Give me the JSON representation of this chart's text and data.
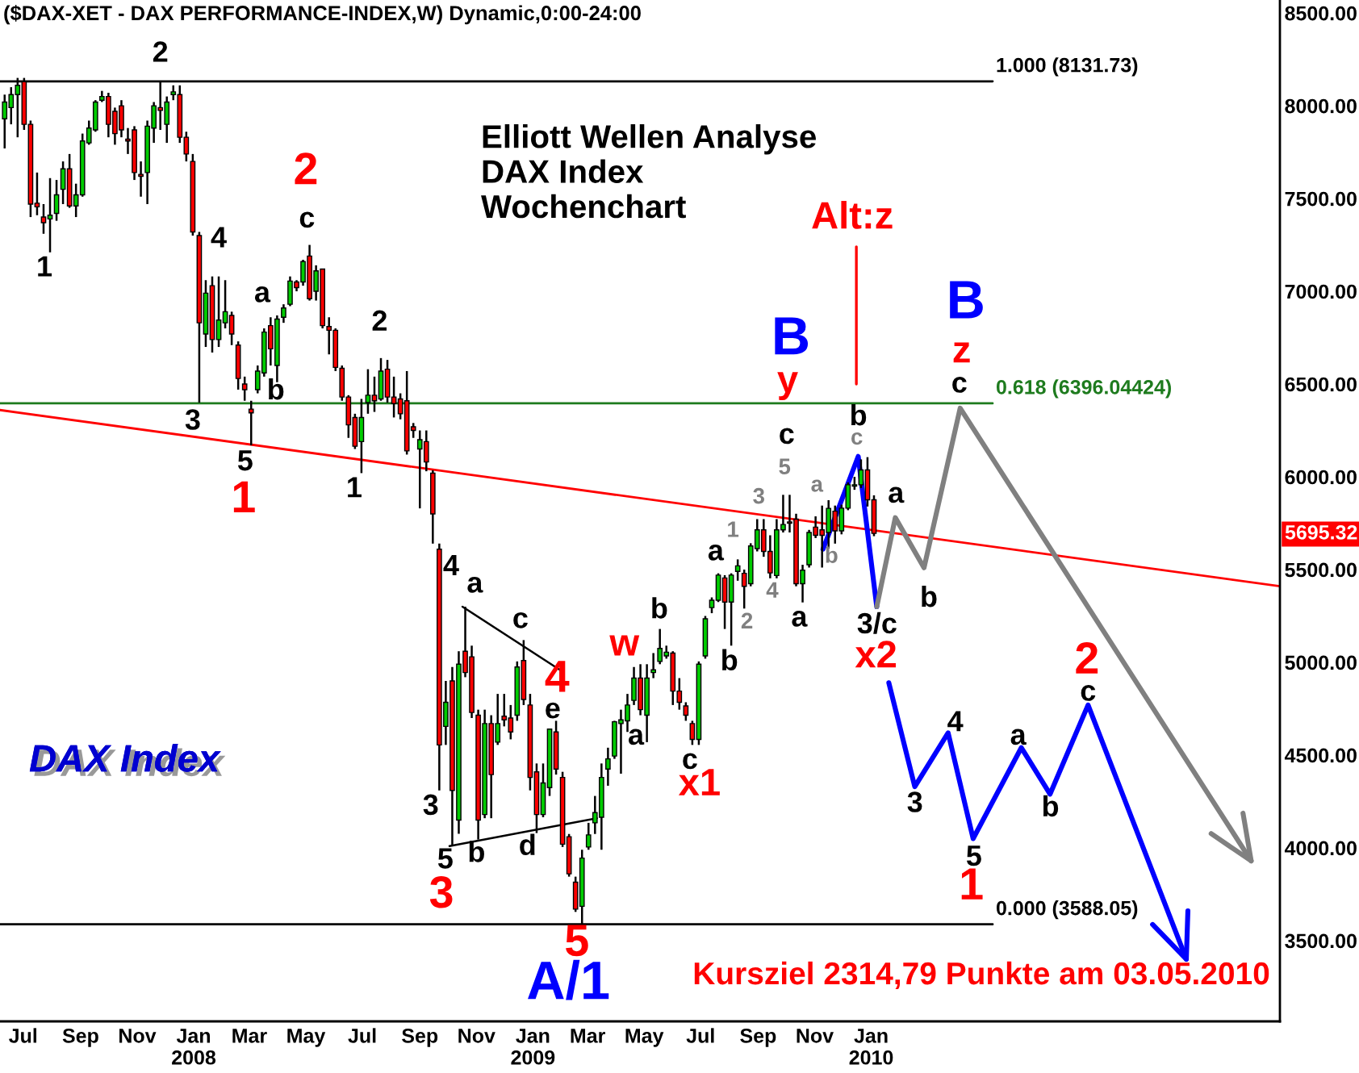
{
  "chart_data": {
    "type": "candlestick",
    "title": "($DAX-XET - DAX PERFORMANCE-INDEX,W) Dynamic,0:00-24:00",
    "x": [
      "2007-06-25",
      "2007-07-02",
      "2007-07-09",
      "2007-07-16",
      "2007-07-23",
      "2007-07-30",
      "2007-08-06",
      "2007-08-13",
      "2007-08-20",
      "2007-08-27",
      "2007-09-03",
      "2007-09-10",
      "2007-09-17",
      "2007-09-24",
      "2007-10-01",
      "2007-10-08",
      "2007-10-15",
      "2007-10-22",
      "2007-10-29",
      "2007-11-05",
      "2007-11-12",
      "2007-11-19",
      "2007-11-26",
      "2007-12-03",
      "2007-12-10",
      "2007-12-17",
      "2007-12-24",
      "2007-12-31",
      "2008-01-07",
      "2008-01-14",
      "2008-01-21",
      "2008-01-28",
      "2008-02-04",
      "2008-02-11",
      "2008-02-18",
      "2008-02-25",
      "2008-03-03",
      "2008-03-10",
      "2008-03-17",
      "2008-03-24",
      "2008-03-31",
      "2008-04-07",
      "2008-04-14",
      "2008-04-21",
      "2008-04-28",
      "2008-05-05",
      "2008-05-12",
      "2008-05-19",
      "2008-05-26",
      "2008-06-02",
      "2008-06-09",
      "2008-06-16",
      "2008-06-23",
      "2008-06-30",
      "2008-07-07",
      "2008-07-14",
      "2008-07-21",
      "2008-07-28",
      "2008-08-04",
      "2008-08-11",
      "2008-08-18",
      "2008-08-25",
      "2008-09-01",
      "2008-09-08",
      "2008-09-15",
      "2008-09-22",
      "2008-09-29",
      "2008-10-06",
      "2008-10-13",
      "2008-10-20",
      "2008-10-27",
      "2008-11-03",
      "2008-11-10",
      "2008-11-17",
      "2008-11-24",
      "2008-12-01",
      "2008-12-08",
      "2008-12-15",
      "2008-12-22",
      "2008-12-29",
      "2009-01-05",
      "2009-01-12",
      "2009-01-19",
      "2009-01-26",
      "2009-02-02",
      "2009-02-09",
      "2009-02-16",
      "2009-02-23",
      "2009-03-02",
      "2009-03-09",
      "2009-03-16",
      "2009-03-23",
      "2009-03-30",
      "2009-04-06",
      "2009-04-13",
      "2009-04-20",
      "2009-04-27",
      "2009-05-04",
      "2009-05-11",
      "2009-05-18",
      "2009-05-25",
      "2009-06-01",
      "2009-06-08",
      "2009-06-15",
      "2009-06-22",
      "2009-06-29",
      "2009-07-06",
      "2009-07-13",
      "2009-07-20",
      "2009-07-27",
      "2009-08-03",
      "2009-08-10",
      "2009-08-17",
      "2009-08-24",
      "2009-08-31",
      "2009-09-07",
      "2009-09-14",
      "2009-09-21",
      "2009-09-28",
      "2009-10-05",
      "2009-10-12",
      "2009-10-19",
      "2009-10-26",
      "2009-11-02",
      "2009-11-09",
      "2009-11-16",
      "2009-11-23",
      "2009-11-30",
      "2009-12-07",
      "2009-12-14",
      "2009-12-21",
      "2009-12-28",
      "2010-01-04",
      "2010-01-11",
      "2010-01-18"
    ],
    "ohlc": [
      [
        7930,
        8060,
        7770,
        8020
      ],
      [
        7990,
        8100,
        7900,
        8060
      ],
      [
        8060,
        8150,
        7830,
        8110
      ],
      [
        8130,
        8150,
        7870,
        7900
      ],
      [
        7900,
        7920,
        7400,
        7470
      ],
      [
        7475,
        7640,
        7410,
        7455
      ],
      [
        7400,
        7470,
        7310,
        7370
      ],
      [
        7390,
        7610,
        7210,
        7410
      ],
      [
        7420,
        7600,
        7380,
        7520
      ],
      [
        7550,
        7700,
        7470,
        7660
      ],
      [
        7660,
        7740,
        7450,
        7460
      ],
      [
        7460,
        7580,
        7400,
        7520
      ],
      [
        7520,
        7850,
        7510,
        7810
      ],
      [
        7800,
        7920,
        7790,
        7880
      ],
      [
        7870,
        8030,
        7860,
        8020
      ],
      [
        8030,
        8080,
        8020,
        8050
      ],
      [
        8050,
        8070,
        7830,
        7900
      ],
      [
        7970,
        7990,
        7790,
        7850
      ],
      [
        8000,
        8030,
        7830,
        7870
      ],
      [
        7820,
        7880,
        7740,
        7810
      ],
      [
        7870,
        7890,
        7600,
        7640
      ],
      [
        7630,
        7700,
        7510,
        7620
      ],
      [
        7640,
        7920,
        7470,
        7890
      ],
      [
        7880,
        8020,
        7800,
        8000
      ],
      [
        7990,
        8130,
        7870,
        7975
      ],
      [
        7900,
        8050,
        7800,
        8020
      ],
      [
        8060,
        8110,
        8030,
        8075
      ],
      [
        8060,
        8110,
        7800,
        7830
      ],
      [
        7830,
        7860,
        7700,
        7740
      ],
      [
        7700,
        7740,
        7300,
        7320
      ],
      [
        7300,
        7320,
        6400,
        6830
      ],
      [
        6770,
        7060,
        6700,
        6990
      ],
      [
        7030,
        7080,
        6670,
        6740
      ],
      [
        6740,
        7080,
        6700,
        6845
      ],
      [
        6830,
        7060,
        6800,
        6890
      ],
      [
        6870,
        6890,
        6710,
        6770
      ],
      [
        6710,
        6730,
        6470,
        6530
      ],
      [
        6500,
        6540,
        6410,
        6470
      ],
      [
        6365,
        6410,
        6170,
        6345
      ],
      [
        6470,
        6600,
        6450,
        6570
      ],
      [
        6560,
        6800,
        6540,
        6780
      ],
      [
        6815,
        6860,
        6600,
        6690
      ],
      [
        6600,
        6870,
        6510,
        6850
      ],
      [
        6860,
        6930,
        6830,
        6910
      ],
      [
        6930,
        7080,
        6920,
        7055
      ],
      [
        7050,
        7060,
        7000,
        7020
      ],
      [
        7050,
        7170,
        7030,
        7160
      ],
      [
        7190,
        7250,
        6950,
        6960
      ],
      [
        7000,
        7140,
        6950,
        7110
      ],
      [
        7120,
        7120,
        6800,
        6815
      ],
      [
        6810,
        6860,
        6660,
        6790
      ],
      [
        6790,
        6800,
        6570,
        6590
      ],
      [
        6585,
        6600,
        6410,
        6430
      ],
      [
        6430,
        6440,
        6210,
        6280
      ],
      [
        6320,
        6340,
        6150,
        6165
      ],
      [
        6190,
        6420,
        6020,
        6320
      ],
      [
        6400,
        6580,
        6340,
        6440
      ],
      [
        6440,
        6540,
        6350,
        6410
      ],
      [
        6420,
        6640,
        6410,
        6570
      ],
      [
        6580,
        6630,
        6400,
        6430
      ],
      [
        6430,
        6540,
        6320,
        6395
      ],
      [
        6420,
        6450,
        6310,
        6340
      ],
      [
        6410,
        6570,
        6120,
        6140
      ],
      [
        6270,
        6290,
        6210,
        6250
      ],
      [
        6150,
        6250,
        5830,
        6200
      ],
      [
        6190,
        6250,
        6030,
        6080
      ],
      [
        6020,
        6035,
        5640,
        5800
      ],
      [
        5610,
        5640,
        4310,
        4555
      ],
      [
        4655,
        4900,
        4555,
        4785
      ],
      [
        4900,
        4975,
        4010,
        4310
      ],
      [
        4150,
        5060,
        4076,
        4990
      ],
      [
        5060,
        5300,
        4920,
        4945
      ],
      [
        5030,
        5090,
        4700,
        4730
      ],
      [
        4715,
        4745,
        4045,
        4150
      ],
      [
        4180,
        4745,
        4160,
        4670
      ],
      [
        4670,
        4715,
        4160,
        4395
      ],
      [
        4570,
        4830,
        4555,
        4670
      ],
      [
        4710,
        4830,
        4655,
        4690
      ],
      [
        4700,
        4770,
        4585,
        4625
      ],
      [
        4715,
        5005,
        4685,
        4975
      ],
      [
        5010,
        5120,
        4770,
        4800
      ],
      [
        4770,
        4830,
        4310,
        4380
      ],
      [
        4410,
        4455,
        4080,
        4180
      ],
      [
        4180,
        4455,
        4165,
        4350
      ],
      [
        4325,
        4640,
        4280,
        4640
      ],
      [
        4625,
        4685,
        4395,
        4425
      ],
      [
        4380,
        4410,
        4005,
        4020
      ],
      [
        4060,
        4075,
        3845,
        3860
      ],
      [
        3815,
        3845,
        3655,
        3670
      ],
      [
        3685,
        3990,
        3588,
        3945
      ],
      [
        4005,
        4135,
        3990,
        4070
      ],
      [
        4135,
        4280,
        4075,
        4190
      ],
      [
        4165,
        4455,
        3990,
        4380
      ],
      [
        4425,
        4540,
        4335,
        4480
      ],
      [
        4495,
        4685,
        4480,
        4680
      ],
      [
        4670,
        4745,
        4400,
        4690
      ],
      [
        4685,
        4830,
        4625,
        4770
      ],
      [
        4795,
        4975,
        4770,
        4915
      ],
      [
        4915,
        4990,
        4715,
        4745
      ],
      [
        4715,
        4990,
        4570,
        4915
      ],
      [
        4945,
        5050,
        4915,
        4960
      ],
      [
        5005,
        5180,
        4990,
        5075
      ],
      [
        5035,
        5090,
        5020,
        5055
      ],
      [
        5050,
        5060,
        4770,
        4845
      ],
      [
        4845,
        4915,
        4745,
        4785
      ],
      [
        4765,
        4785,
        4685,
        4715
      ],
      [
        4670,
        4685,
        4555,
        4585
      ],
      [
        4585,
        5005,
        4555,
        4990
      ],
      [
        5035,
        5250,
        5020,
        5235
      ],
      [
        5295,
        5350,
        5265,
        5335
      ],
      [
        5335,
        5480,
        5325,
        5470
      ],
      [
        5455,
        5470,
        5180,
        5325
      ],
      [
        5325,
        5480,
        5090,
        5470
      ],
      [
        5490,
        5555,
        5440,
        5520
      ],
      [
        5480,
        5500,
        5290,
        5410
      ],
      [
        5424,
        5642,
        5410,
        5627
      ],
      [
        5613,
        5772,
        5598,
        5714
      ],
      [
        5714,
        5772,
        5569,
        5598
      ],
      [
        5598,
        5685,
        5453,
        5482
      ],
      [
        5468,
        5772,
        5453,
        5714
      ],
      [
        5714,
        5903,
        5700,
        5743
      ],
      [
        5757,
        5903,
        5700,
        5750
      ],
      [
        5772,
        5801,
        5410,
        5424
      ],
      [
        5424,
        5526,
        5323,
        5497
      ],
      [
        5526,
        5714,
        5511,
        5700
      ],
      [
        5729,
        5787,
        5670,
        5685
      ],
      [
        5714,
        5845,
        5511,
        5685
      ],
      [
        5700,
        5874,
        5613,
        5830
      ],
      [
        5815,
        5845,
        5640,
        5709
      ],
      [
        5709,
        5850,
        5690,
        5831
      ],
      [
        5831,
        5970,
        5820,
        5957
      ],
      [
        5950,
        6000,
        5930,
        5957
      ],
      [
        5957,
        6094,
        5940,
        6037
      ],
      [
        6037,
        6106,
        5840,
        5876
      ],
      [
        5876,
        5900,
        5680,
        5695
      ]
    ],
    "colors": [
      "#00cc00",
      "#00cc00",
      "#00cc00",
      "#ff0000",
      "#ff0000",
      "#ff0000",
      "#ff0000",
      "#00cc00",
      "#00cc00",
      "#00cc00",
      "#ff0000",
      "#00cc00",
      "#00cc00",
      "#00cc00",
      "#00cc00",
      "#00cc00",
      "#ff0000",
      "#ff0000",
      "#ff0000",
      "#ff0000",
      "#ff0000",
      "#ff0000",
      "#00cc00",
      "#00cc00",
      "#ff0000",
      "#00cc00",
      "#00cc00",
      "#ff0000",
      "#ff0000",
      "#ff0000",
      "#ff0000",
      "#00cc00",
      "#ff0000",
      "#00cc00",
      "#00cc00",
      "#ff0000",
      "#ff0000",
      "#ff0000",
      "#ff0000",
      "#00cc00",
      "#00cc00",
      "#ff0000",
      "#00cc00",
      "#00cc00",
      "#00cc00",
      "#ff0000",
      "#00cc00",
      "#ff0000",
      "#00cc00",
      "#ff0000",
      "#ff0000",
      "#ff0000",
      "#ff0000",
      "#ff0000",
      "#ff0000",
      "#00cc00",
      "#00cc00",
      "#ff0000",
      "#00cc00",
      "#ff0000",
      "#ff0000",
      "#ff0000",
      "#ff0000",
      "#ff0000",
      "#00cc00",
      "#ff0000",
      "#ff0000",
      "#ff0000",
      "#00cc00",
      "#ff0000",
      "#00cc00",
      "#ff0000",
      "#ff0000",
      "#ff0000",
      "#00cc00",
      "#ff0000",
      "#00cc00",
      "#ff0000",
      "#ff0000",
      "#00cc00",
      "#ff0000",
      "#ff0000",
      "#ff0000",
      "#00cc00",
      "#00cc00",
      "#ff0000",
      "#ff0000",
      "#ff0000",
      "#ff0000",
      "#00cc00",
      "#00cc00",
      "#00cc00",
      "#00cc00",
      "#00cc00",
      "#00cc00",
      "#00cc00",
      "#00cc00",
      "#00cc00",
      "#ff0000",
      "#00cc00",
      "#00cc00",
      "#00cc00",
      "#00cc00",
      "#ff0000",
      "#ff0000",
      "#ff0000",
      "#ff0000",
      "#00cc00",
      "#00cc00",
      "#00cc00",
      "#00cc00",
      "#ff0000",
      "#00cc00",
      "#00cc00",
      "#ff0000",
      "#00cc00",
      "#00cc00",
      "#ff0000",
      "#ff0000",
      "#00cc00",
      "#00cc00",
      "#ff0000",
      "#ff0000",
      "#00cc00",
      "#00cc00",
      "#ff0000",
      "#ff0000",
      "#00cc00",
      "#ff0000",
      "#00cc00",
      "#00cc00",
      "#00cc00",
      "#00cc00",
      "#ff0000",
      "#ff0000"
    ],
    "series": [
      {
        "type": "line",
        "color": "#ff0000",
        "x": [
          "2007-06-20",
          "2011-04-01"
        ],
        "values": [
          6360,
          5410
        ]
      },
      {
        "type": "line",
        "color": "#000000",
        "x": [
          "2008-10-31",
          "2009-02-13"
        ],
        "values": [
          5300,
          4960
        ]
      },
      {
        "type": "line",
        "color": "#000000",
        "x": [
          "2008-10-17",
          "2009-03-25"
        ],
        "values": [
          4010,
          4160
        ]
      },
      {
        "type": "line",
        "color": "#ff0000",
        "x": [
          "2009-12-30",
          "2009-12-30"
        ],
        "values": [
          7240,
          6500
        ]
      },
      {
        "type": "line",
        "color": "#0000ff",
        "x": [
          "2009-11-24",
          "2010-01-01",
          "2010-01-21"
        ],
        "values": [
          5610,
          6110,
          5300
        ]
      },
      {
        "type": "line",
        "color": "#0000ff",
        "x": [
          "2010-02-03",
          "2010-03-03",
          "2010-04-08",
          "2010-05-05",
          "2010-06-26",
          "2010-07-27",
          "2010-09-06",
          "2010-12-21"
        ],
        "values": [
          4890,
          4330,
          4620,
          4050,
          4540,
          4290,
          4770,
          3400
        ]
      },
      {
        "type": "line",
        "color": "#808080",
        "x": [
          "2010-01-21",
          "2010-02-10",
          "2010-03-13",
          "2010-04-21",
          "2011-03-01"
        ],
        "values": [
          5300,
          5780,
          5510,
          6370,
          3930
        ]
      }
    ],
    "ref_lines": [
      {
        "axis": "y",
        "value": 8131.73,
        "label": "1.000 (8131.73)",
        "color": "#000000"
      },
      {
        "axis": "y",
        "value": 6396.04424,
        "label": "0.618 (6396.04424)",
        "color": "#1e7b1e"
      },
      {
        "axis": "y",
        "value": 3588.05,
        "label": "0.000 (3588.05)",
        "color": "#000000"
      }
    ],
    "annotations": [
      "Elliott Wellen Analyse\nDAX Index\nWochenchart",
      "DAX Index",
      "5695.32",
      "B",
      "y",
      {
        "text": "Kursziel 2314,79 Punkte am 03.05.2010",
        "x": "2010-12-21",
        "y": 3400
      },
      {
        "text": "2",
        "x": "2007-12-10",
        "y": 8130
      },
      {
        "text": "1",
        "x": "2007-08-13",
        "y": 7210
      },
      {
        "text": "4",
        "x": "2008-02-11",
        "y": 7080
      },
      {
        "text": "a",
        "x": "2008-03-31",
        "y": 6800
      },
      {
        "text": "b",
        "x": "2008-04-14",
        "y": 6510
      },
      {
        "text": "3",
        "x": "2008-01-21",
        "y": 6400
      },
      {
        "text": "5",
        "x": "2008-03-17",
        "y": 6170
      },
      {
        "text": "c",
        "x": "2008-05-19",
        "y": 7250
      },
      {
        "text": "2",
        "x": "2008-08-04",
        "y": 6640
      },
      {
        "text": "1",
        "x": "2008-07-14",
        "y": 6020
      },
      {
        "text": "4",
        "x": "2008-10-06",
        "y": 5640
      },
      {
        "text": "a",
        "x": "2008-11-03",
        "y": 5300
      },
      {
        "text": "c",
        "x": "2009-01-05",
        "y": 5120
      },
      {
        "text": "e",
        "x": "2009-02-02",
        "y": 4640
      },
      {
        "text": "3",
        "x": "2008-10-06",
        "y": 4310
      },
      {
        "text": "5",
        "x": "2008-10-20",
        "y": 4010
      },
      {
        "text": "b",
        "x": "2008-11-17",
        "y": 4045
      },
      {
        "text": "d",
        "x": "2009-01-19",
        "y": 4080
      },
      {
        "text": "a",
        "x": "2009-05-11",
        "y": 4715
      },
      {
        "text": "b",
        "x": "2009-06-01",
        "y": 5180
      },
      {
        "text": "c",
        "x": "2009-07-06",
        "y": 4555
      },
      {
        "text": "a",
        "x": "2009-08-03",
        "y": 5480
      },
      {
        "text": "b",
        "x": "2009-08-17",
        "y": 5090
      },
      {
        "text": "c",
        "x": "2009-10-12",
        "y": 5903
      },
      {
        "text": "a",
        "x": "2009-11-02",
        "y": 5323
      },
      {
        "text": "b",
        "x": "2010-01-01",
        "y": 6110
      },
      {
        "text": "a",
        "x": "2010-02-10",
        "y": 5780
      },
      {
        "text": "b",
        "x": "2010-03-13",
        "y": 5510
      },
      {
        "text": "3/c",
        "x": "2010-01-21",
        "y": 5300
      },
      {
        "text": "c",
        "x": "2010-04-21",
        "y": 6370
      },
      {
        "text": "3",
        "x": "2010-03-03",
        "y": 4330
      },
      {
        "text": "4",
        "x": "2010-04-08",
        "y": 4620
      },
      {
        "text": "a",
        "x": "2010-06-26",
        "y": 4540
      },
      {
        "text": "5",
        "x": "2010-05-05",
        "y": 4050
      },
      {
        "text": "b",
        "x": "2010-07-27",
        "y": 4290
      },
      {
        "text": "c",
        "x": "2010-09-06",
        "y": 4770
      },
      {
        "text": "2",
        "x": "2008-05-19",
        "y": 7250
      },
      {
        "text": "1",
        "x": "2008-03-17",
        "y": 6170
      },
      {
        "text": "4",
        "x": "2009-02-13",
        "y": 4960
      },
      {
        "text": "3",
        "x": "2008-10-20",
        "y": 4010
      },
      {
        "text": "5",
        "x": "2009-03-09",
        "y": 3588
      },
      {
        "text": "2",
        "x": "2010-09-06",
        "y": 4770
      },
      {
        "text": "1",
        "x": "2010-05-05",
        "y": 4050
      },
      {
        "text": "w",
        "x": "2009-05-04",
        "y": 4975
      },
      {
        "text": "x1",
        "x": "2009-07-06",
        "y": 4555
      },
      {
        "text": "x2",
        "x": "2010-01-21",
        "y": 5300
      },
      {
        "text": "z",
        "x": "2010-04-21",
        "y": 6370
      },
      {
        "text": "Alt:z",
        "x": "2009-12-30",
        "y": 7240
      },
      {
        "text": "B",
        "x": "2010-04-21",
        "y": 6370
      },
      {
        "text": "A/1",
        "x": "2009-03-09",
        "y": 3588
      },
      {
        "text": "1",
        "x": "2009-08-24",
        "y": 5555
      },
      {
        "text": "2",
        "x": "2009-08-31",
        "y": 5290
      },
      {
        "text": "3",
        "x": "2009-09-14",
        "y": 5772
      },
      {
        "text": "4",
        "x": "2009-09-28",
        "y": 5453
      },
      {
        "text": "5",
        "x": "2009-10-12",
        "y": 5903
      },
      {
        "text": "a",
        "x": "2009-11-23",
        "y": 5845
      },
      {
        "text": "b",
        "x": "2009-12-07",
        "y": 5640
      },
      {
        "text": "c",
        "x": "2010-01-01",
        "y": 6110
      }
    ],
    "xlim": [
      "2007-06-20",
      "2011-04-01"
    ],
    "xticks": [
      {
        "value": "2007-07-15",
        "label": "Jul"
      },
      {
        "value": "2007-09-15",
        "label": "Sep"
      },
      {
        "value": "2007-11-15",
        "label": "Nov"
      },
      {
        "value": "2008-01-15",
        "label": "Jan\n2008"
      },
      {
        "value": "2008-03-15",
        "label": "Mar"
      },
      {
        "value": "2008-05-15",
        "label": "May"
      },
      {
        "value": "2008-07-15",
        "label": "Jul"
      },
      {
        "value": "2008-09-15",
        "label": "Sep"
      },
      {
        "value": "2008-11-15",
        "label": "Nov"
      },
      {
        "value": "2009-01-15",
        "label": "Jan\n2009"
      },
      {
        "value": "2009-03-15",
        "label": "Mar"
      },
      {
        "value": "2009-05-15",
        "label": "May"
      },
      {
        "value": "2009-07-15",
        "label": "Jul"
      },
      {
        "value": "2009-09-15",
        "label": "Sep"
      },
      {
        "value": "2009-11-15",
        "label": "Nov"
      },
      {
        "value": "2010-01-15",
        "label": "Jan\n2010"
      }
    ],
    "ylim": [
      3065,
      8570
    ],
    "yticks": [
      {
        "value": 3500,
        "label": "3500.00"
      },
      {
        "value": 4000,
        "label": "4000.00"
      },
      {
        "value": 4500,
        "label": "4500.00"
      },
      {
        "value": 5000,
        "label": "5000.00"
      },
      {
        "value": 5500,
        "label": "5500.00"
      },
      {
        "value": 6000,
        "label": "6000.00"
      },
      {
        "value": 6500,
        "label": "6500.00"
      },
      {
        "value": 7000,
        "label": "7000.00"
      },
      {
        "value": 7500,
        "label": "7500.00"
      },
      {
        "value": 8000,
        "label": "8000.00"
      },
      {
        "value": 8500,
        "label": "8500.00"
      }
    ]
  }
}
